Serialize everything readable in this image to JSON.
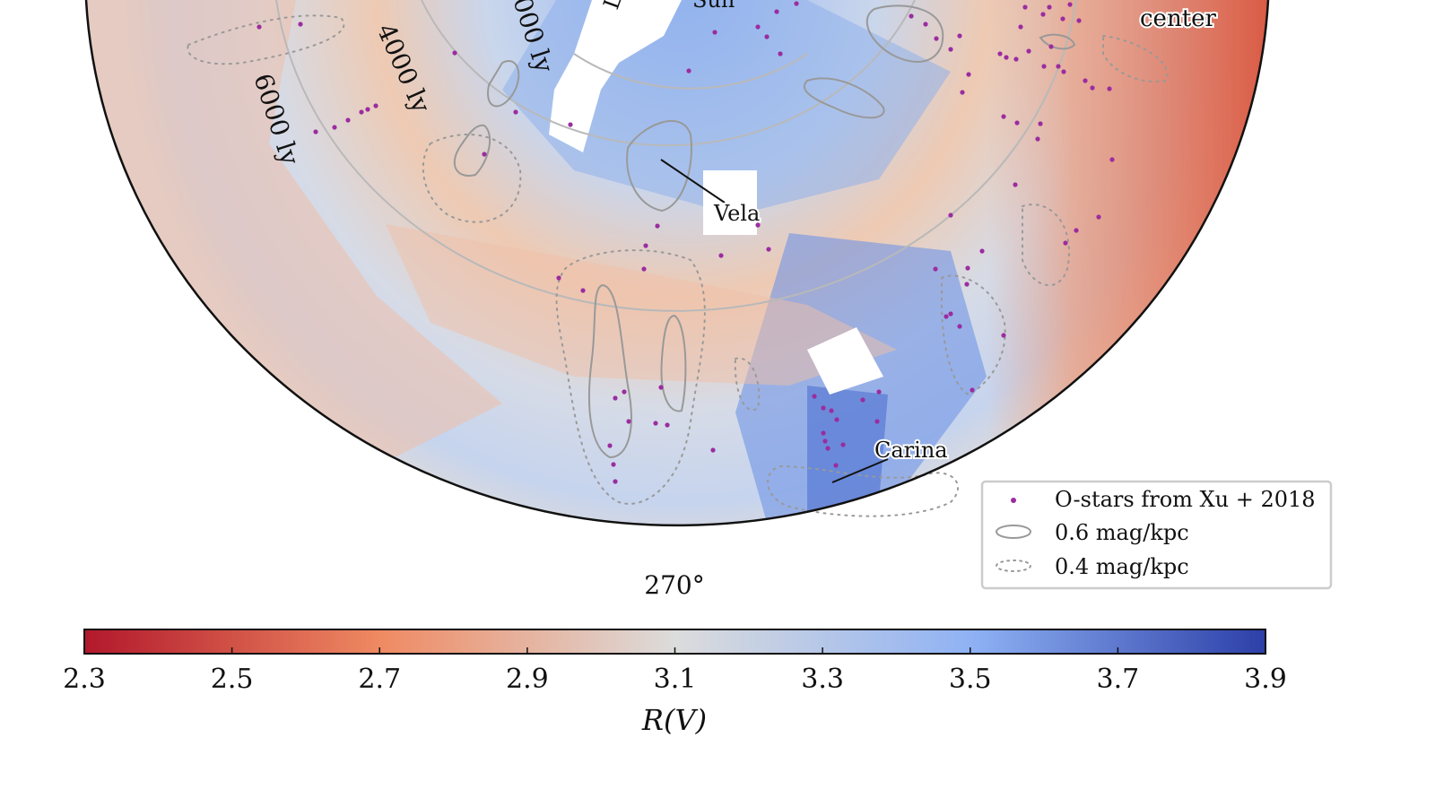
{
  "map": {
    "labels": {
      "center": "center",
      "sun": "Sun",
      "vela": "Vela",
      "carina": "Carina",
      "lon_270": "270°"
    },
    "ring_labels": [
      "4000 ly",
      "6000 ly",
      "000 ly",
      "Lo"
    ]
  },
  "legend": {
    "items": [
      {
        "label": "O-stars from Xu + 2018",
        "symbol": "dot",
        "color": "#9b2ca0"
      },
      {
        "label": "0.6 mag/kpc",
        "symbol": "solid-contour",
        "color": "#999999"
      },
      {
        "label": "0.4 mag/kpc",
        "symbol": "dotted-contour",
        "color": "#999999"
      }
    ]
  },
  "colorbar": {
    "ticks": [
      "2.3",
      "2.5",
      "2.7",
      "2.9",
      "3.1",
      "3.3",
      "3.5",
      "3.7",
      "3.9"
    ],
    "label": "R(V)",
    "range": [
      2.3,
      3.9
    ],
    "colors": {
      "low": "#b2182b",
      "mid": "#dcdcdc",
      "high": "#2c3fa8"
    }
  }
}
